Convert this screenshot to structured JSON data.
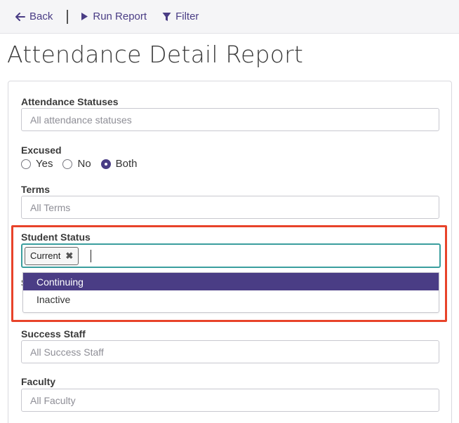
{
  "toolbar": {
    "back_label": "Back",
    "run_report_label": "Run Report",
    "filter_label": "Filter",
    "accent_color": "#4a3d85"
  },
  "page": {
    "title": "Attendance Detail Report"
  },
  "filters": {
    "attendance_statuses": {
      "label": "Attendance Statuses",
      "placeholder": "All attendance statuses"
    },
    "excused": {
      "label": "Excused",
      "options": [
        "Yes",
        "No",
        "Both"
      ],
      "selected": "Both"
    },
    "terms": {
      "label": "Terms",
      "placeholder": "All Terms"
    },
    "student_status": {
      "label": "Student Status",
      "selected_chips": [
        "Current"
      ],
      "chip_remove_icon": "close-icon",
      "dropdown_options": [
        "Continuing",
        "Inactive"
      ],
      "highlighted_option": "Continuing",
      "hidden_label_fragment": "S",
      "focus_color": "#3a9e9e",
      "annotation_color": "#e8432a"
    },
    "success_staff": {
      "label": "Success Staff",
      "placeholder": "All Success Staff"
    },
    "faculty": {
      "label": "Faculty",
      "placeholder": "All Faculty"
    }
  }
}
